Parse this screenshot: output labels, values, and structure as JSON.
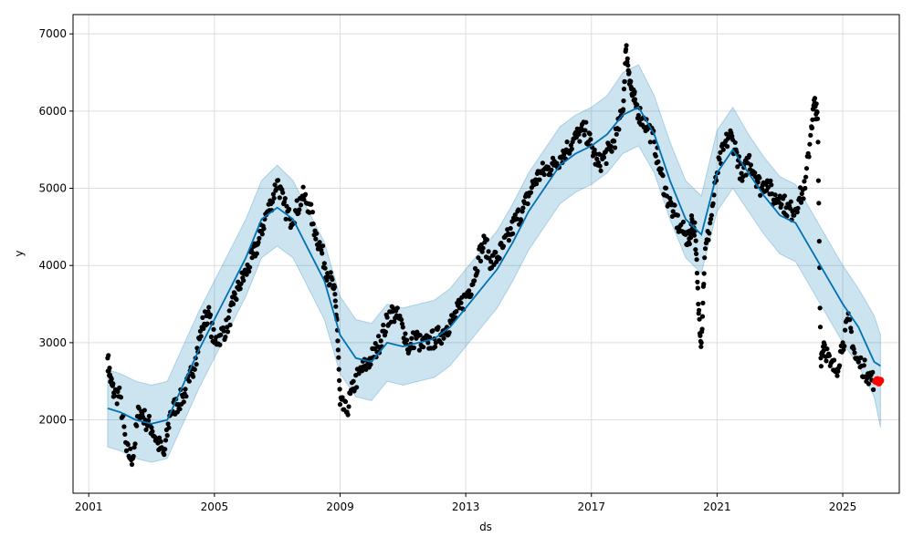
{
  "chart_data": {
    "type": "line",
    "title": "",
    "xlabel": "ds",
    "ylabel": "y",
    "x_ticks": [
      "2001",
      "2005",
      "2009",
      "2013",
      "2017",
      "2021",
      "2025"
    ],
    "y_ticks": [
      2000,
      3000,
      4000,
      5000,
      6000,
      7000
    ],
    "xlim": [
      2000.5,
      2026.8
    ],
    "ylim": [
      1050,
      7250
    ],
    "grid": true,
    "colors": {
      "observed": "#000000",
      "forecast": "#0072B2",
      "interval": "#0072B2",
      "future_actual": "#ff0000"
    },
    "series": [
      {
        "role": "forecast",
        "x": [
          2001.6,
          2002.0,
          2002.5,
          2003.0,
          2003.5,
          2004.0,
          2004.5,
          2005.0,
          2005.5,
          2006.0,
          2006.5,
          2007.0,
          2007.5,
          2008.0,
          2008.5,
          2009.0,
          2009.5,
          2010.0,
          2010.5,
          2011.0,
          2011.5,
          2012.0,
          2012.5,
          2013.0,
          2013.5,
          2014.0,
          2014.5,
          2015.0,
          2015.5,
          2016.0,
          2016.5,
          2017.0,
          2017.5,
          2018.0,
          2018.5,
          2019.0,
          2019.5,
          2020.0,
          2020.5,
          2021.0,
          2021.5,
          2022.0,
          2022.5,
          2023.0,
          2023.5,
          2024.0,
          2024.5,
          2025.0,
          2025.5,
          2026.0,
          2026.2
        ],
        "y": [
          2150,
          2100,
          2000,
          1950,
          2000,
          2450,
          2900,
          3300,
          3700,
          4100,
          4600,
          4750,
          4600,
          4200,
          3800,
          3100,
          2800,
          2750,
          3000,
          2950,
          3000,
          3050,
          3200,
          3450,
          3700,
          3950,
          4300,
          4700,
          5000,
          5300,
          5450,
          5550,
          5700,
          5950,
          6050,
          5700,
          5100,
          4600,
          4400,
          5200,
          5500,
          5200,
          4900,
          4650,
          4550,
          4200,
          3850,
          3500,
          3200,
          2750,
          2700
        ]
      },
      {
        "role": "uncertainty-upper",
        "x": [
          2001.6,
          2002.0,
          2002.5,
          2003.0,
          2003.5,
          2004.0,
          2004.5,
          2005.0,
          2005.5,
          2006.0,
          2006.5,
          2007.0,
          2007.5,
          2008.0,
          2008.5,
          2009.0,
          2009.5,
          2010.0,
          2010.5,
          2011.0,
          2011.5,
          2012.0,
          2012.5,
          2013.0,
          2013.5,
          2014.0,
          2014.5,
          2015.0,
          2015.5,
          2016.0,
          2016.5,
          2017.0,
          2017.5,
          2018.0,
          2018.5,
          2019.0,
          2019.5,
          2020.0,
          2020.5,
          2021.0,
          2021.5,
          2022.0,
          2022.5,
          2023.0,
          2023.5,
          2024.0,
          2024.5,
          2025.0,
          2025.5,
          2026.0,
          2026.2
        ],
        "y": [
          2650,
          2600,
          2500,
          2450,
          2500,
          2950,
          3400,
          3800,
          4200,
          4600,
          5100,
          5300,
          5100,
          4700,
          4300,
          3600,
          3300,
          3250,
          3500,
          3450,
          3500,
          3550,
          3700,
          3950,
          4200,
          4450,
          4800,
          5200,
          5500,
          5800,
          5950,
          6050,
          6200,
          6500,
          6600,
          6200,
          5600,
          5100,
          4900,
          5750,
          6050,
          5700,
          5400,
          5150,
          5050,
          4700,
          4350,
          4000,
          3700,
          3350,
          3100
        ]
      },
      {
        "role": "uncertainty-lower",
        "x": [
          2001.6,
          2002.0,
          2002.5,
          2003.0,
          2003.5,
          2004.0,
          2004.5,
          2005.0,
          2005.5,
          2006.0,
          2006.5,
          2007.0,
          2007.5,
          2008.0,
          2008.5,
          2009.0,
          2009.5,
          2010.0,
          2010.5,
          2011.0,
          2011.5,
          2012.0,
          2012.5,
          2013.0,
          2013.5,
          2014.0,
          2014.5,
          2015.0,
          2015.5,
          2016.0,
          2016.5,
          2017.0,
          2017.5,
          2018.0,
          2018.5,
          2019.0,
          2019.5,
          2020.0,
          2020.5,
          2021.0,
          2021.5,
          2022.0,
          2022.5,
          2023.0,
          2023.5,
          2024.0,
          2024.5,
          2025.0,
          2025.5,
          2026.0,
          2026.2
        ],
        "y": [
          1650,
          1600,
          1500,
          1450,
          1500,
          1950,
          2400,
          2800,
          3200,
          3600,
          4100,
          4250,
          4100,
          3700,
          3300,
          2600,
          2300,
          2250,
          2500,
          2450,
          2500,
          2550,
          2700,
          2950,
          3200,
          3450,
          3800,
          4200,
          4500,
          4800,
          4950,
          5050,
          5200,
          5450,
          5550,
          5200,
          4600,
          4100,
          3900,
          4700,
          5000,
          4700,
          4400,
          4150,
          4050,
          3700,
          3350,
          3000,
          2700,
          2300,
          1900
        ]
      },
      {
        "role": "observed",
        "x": [
          2001.6,
          2001.7,
          2001.8,
          2002.0,
          2002.2,
          2002.4,
          2002.6,
          2002.8,
          2003.0,
          2003.2,
          2003.4,
          2003.6,
          2003.8,
          2004.0,
          2004.2,
          2004.4,
          2004.6,
          2004.8,
          2005.0,
          2005.2,
          2005.4,
          2005.6,
          2005.8,
          2006.0,
          2006.2,
          2006.4,
          2006.6,
          2006.8,
          2007.0,
          2007.2,
          2007.4,
          2007.6,
          2007.8,
          2008.0,
          2008.2,
          2008.4,
          2008.6,
          2008.8,
          2008.9,
          2009.0,
          2009.2,
          2009.4,
          2009.6,
          2009.8,
          2010.0,
          2010.2,
          2010.4,
          2010.6,
          2010.8,
          2011.0,
          2011.2,
          2011.4,
          2011.6,
          2011.8,
          2012.0,
          2012.2,
          2012.4,
          2012.6,
          2012.8,
          2013.0,
          2013.2,
          2013.4,
          2013.6,
          2013.8,
          2014.0,
          2014.2,
          2014.4,
          2014.6,
          2014.8,
          2015.0,
          2015.2,
          2015.4,
          2015.6,
          2015.8,
          2016.0,
          2016.2,
          2016.4,
          2016.6,
          2016.8,
          2017.0,
          2017.2,
          2017.4,
          2017.6,
          2017.8,
          2018.0,
          2018.1,
          2018.2,
          2018.3,
          2018.4,
          2018.6,
          2018.8,
          2019.0,
          2019.2,
          2019.4,
          2019.6,
          2019.8,
          2020.0,
          2020.1,
          2020.2,
          2020.3,
          2020.4,
          2020.5,
          2020.6,
          2020.8,
          2021.0,
          2021.2,
          2021.4,
          2021.6,
          2021.8,
          2022.0,
          2022.2,
          2022.4,
          2022.6,
          2022.8,
          2023.0,
          2023.2,
          2023.4,
          2023.6,
          2023.8,
          2024.0,
          2024.1,
          2024.2,
          2024.3,
          2024.4,
          2024.6,
          2024.8,
          2025.0,
          2025.2,
          2025.4,
          2025.6,
          2025.8,
          2026.0
        ],
        "y": [
          2800,
          2500,
          2350,
          2300,
          1600,
          1500,
          2150,
          2000,
          1900,
          1700,
          1550,
          2100,
          2200,
          2300,
          2500,
          2800,
          3200,
          3400,
          3000,
          3100,
          3200,
          3500,
          3750,
          3900,
          4100,
          4300,
          4600,
          4800,
          5100,
          4800,
          4600,
          4700,
          4900,
          4800,
          4450,
          4200,
          3900,
          3700,
          3300,
          2200,
          2100,
          2400,
          2600,
          2700,
          2800,
          2950,
          3150,
          3400,
          3350,
          3200,
          2900,
          3100,
          2950,
          3000,
          3050,
          3100,
          3200,
          3300,
          3450,
          3600,
          3750,
          4100,
          4300,
          4050,
          4100,
          4250,
          4400,
          4600,
          4700,
          4900,
          5100,
          5200,
          5250,
          5300,
          5400,
          5500,
          5600,
          5700,
          5750,
          5550,
          5300,
          5400,
          5500,
          5700,
          6000,
          6800,
          6500,
          6200,
          6100,
          5900,
          5800,
          5600,
          5200,
          4900,
          4700,
          4500,
          4400,
          4300,
          4600,
          4450,
          3500,
          3000,
          4100,
          4600,
          5200,
          5500,
          5700,
          5500,
          5100,
          5400,
          5200,
          5000,
          5100,
          4850,
          4900,
          4750,
          4700,
          4850,
          5000,
          5800,
          6100,
          5900,
          2800,
          3000,
          2700,
          2650,
          3000,
          3300,
          2800,
          2700,
          2600,
          2500
        ]
      },
      {
        "role": "future-actual",
        "x": [
          2026.05,
          2026.1,
          2026.15,
          2026.2
        ],
        "y": [
          2500,
          2520,
          2480,
          2510
        ]
      }
    ]
  }
}
